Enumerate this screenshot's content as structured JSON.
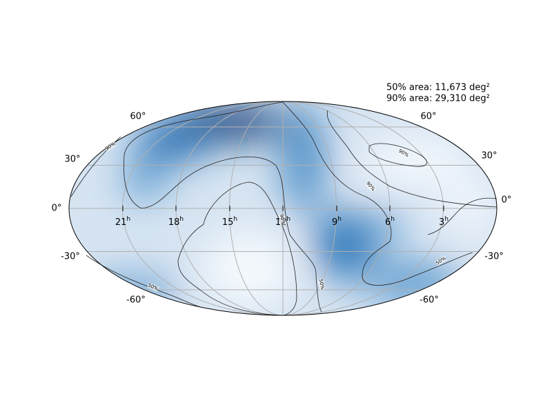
{
  "annotations": [
    "50% area: 11,673 deg²",
    "90% area: 29,310 deg²"
  ],
  "ra_labels": [
    {
      "hour": "21",
      "suffix": "h"
    },
    {
      "hour": "18",
      "suffix": "h"
    },
    {
      "hour": "15",
      "suffix": "h"
    },
    {
      "hour": "12",
      "suffix": "h"
    },
    {
      "hour": "9",
      "suffix": "h"
    },
    {
      "hour": "6",
      "suffix": "h"
    },
    {
      "hour": "3",
      "suffix": "h"
    }
  ],
  "dec_labels_left": [
    "60°",
    "30°",
    "0°",
    "-30°",
    "-60°"
  ],
  "dec_labels_right": [
    "60°",
    "30°",
    "0°",
    "-30°",
    "-60°"
  ],
  "contour_labels": [
    "90%",
    "90%",
    "90%",
    "90%",
    "50%",
    "50%",
    "50%"
  ]
}
